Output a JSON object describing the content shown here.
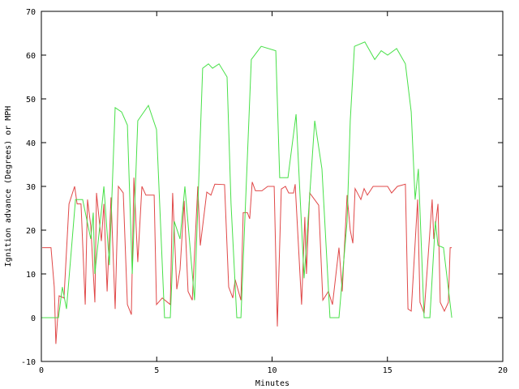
{
  "chart_data": {
    "type": "line",
    "title": "",
    "xlabel": "Minutes",
    "ylabel": "Ignition advance (Degrees) or MPH",
    "xlim": [
      0,
      20
    ],
    "ylim": [
      -10,
      70
    ],
    "xticks": [
      0,
      5,
      10,
      15,
      20
    ],
    "yticks": [
      -10,
      0,
      10,
      20,
      30,
      40,
      50,
      60,
      70
    ],
    "grid": false,
    "legend": "none",
    "series": [
      {
        "color": "#e04848",
        "points": [
          [
            0.04,
            16
          ],
          [
            0.42,
            16
          ],
          [
            0.56,
            7
          ],
          [
            0.63,
            -6
          ],
          [
            0.77,
            5
          ],
          [
            0.98,
            4.5
          ],
          [
            1.2,
            26
          ],
          [
            1.44,
            30
          ],
          [
            1.55,
            26
          ],
          [
            1.72,
            26
          ],
          [
            1.9,
            3
          ],
          [
            2.0,
            27
          ],
          [
            2.14,
            21
          ],
          [
            2.32,
            3.5
          ],
          [
            2.39,
            28.5
          ],
          [
            2.6,
            17.5
          ],
          [
            2.71,
            26
          ],
          [
            2.85,
            6
          ],
          [
            3.02,
            27.5
          ],
          [
            3.2,
            2
          ],
          [
            3.34,
            30
          ],
          [
            3.55,
            28.5
          ],
          [
            3.73,
            3
          ],
          [
            3.9,
            0.7
          ],
          [
            4.01,
            32
          ],
          [
            4.18,
            12.7
          ],
          [
            4.36,
            30
          ],
          [
            4.53,
            28
          ],
          [
            4.89,
            28
          ],
          [
            4.99,
            3
          ],
          [
            5.24,
            4.5
          ],
          [
            5.59,
            3
          ],
          [
            5.69,
            28.5
          ],
          [
            5.87,
            6.5
          ],
          [
            6.01,
            11
          ],
          [
            6.19,
            26.7
          ],
          [
            6.36,
            6
          ],
          [
            6.54,
            4
          ],
          [
            6.78,
            30
          ],
          [
            6.89,
            16.5
          ],
          [
            7.17,
            28.7
          ],
          [
            7.35,
            28
          ],
          [
            7.52,
            30.5
          ],
          [
            7.94,
            30.4
          ],
          [
            8.12,
            7
          ],
          [
            8.3,
            4.5
          ],
          [
            8.4,
            8.7
          ],
          [
            8.65,
            4
          ],
          [
            8.75,
            24
          ],
          [
            8.93,
            24
          ],
          [
            9.03,
            22.6
          ],
          [
            9.14,
            31
          ],
          [
            9.28,
            29
          ],
          [
            9.56,
            29
          ],
          [
            9.81,
            30
          ],
          [
            10.09,
            30
          ],
          [
            10.23,
            -2
          ],
          [
            10.4,
            29.4
          ],
          [
            10.58,
            30
          ],
          [
            10.72,
            28.5
          ],
          [
            10.93,
            28.5
          ],
          [
            11.0,
            30.5
          ],
          [
            11.28,
            3
          ],
          [
            11.42,
            23
          ],
          [
            11.49,
            10
          ],
          [
            11.63,
            28.5
          ],
          [
            12.02,
            25.7
          ],
          [
            12.2,
            4
          ],
          [
            12.44,
            6
          ],
          [
            12.62,
            3
          ],
          [
            12.9,
            16
          ],
          [
            13.04,
            6
          ],
          [
            13.25,
            28
          ],
          [
            13.39,
            20
          ],
          [
            13.5,
            17
          ],
          [
            13.6,
            29.5
          ],
          [
            13.85,
            27
          ],
          [
            13.99,
            29.5
          ],
          [
            14.13,
            28
          ],
          [
            14.38,
            30
          ],
          [
            15.01,
            30
          ],
          [
            15.18,
            28.5
          ],
          [
            15.43,
            30
          ],
          [
            15.78,
            30.5
          ],
          [
            15.89,
            2
          ],
          [
            16.03,
            1.5
          ],
          [
            16.31,
            27
          ],
          [
            16.41,
            3.5
          ],
          [
            16.59,
            1
          ],
          [
            16.94,
            27
          ],
          [
            17.01,
            18
          ],
          [
            17.19,
            26
          ],
          [
            17.29,
            3.5
          ],
          [
            17.47,
            1.5
          ],
          [
            17.64,
            3.5
          ],
          [
            17.72,
            16
          ],
          [
            17.79,
            16
          ]
        ]
      },
      {
        "color": "#48e048",
        "points": [
          [
            0,
            0
          ],
          [
            0.74,
            0
          ],
          [
            0.91,
            7
          ],
          [
            1.09,
            2
          ],
          [
            1.48,
            27
          ],
          [
            1.79,
            27
          ],
          [
            2.14,
            18
          ],
          [
            2.25,
            24
          ],
          [
            2.32,
            10
          ],
          [
            2.71,
            30
          ],
          [
            2.95,
            12
          ],
          [
            3.2,
            48
          ],
          [
            3.48,
            47
          ],
          [
            3.73,
            44
          ],
          [
            3.94,
            10
          ],
          [
            4.18,
            45
          ],
          [
            4.64,
            48.5
          ],
          [
            4.99,
            43
          ],
          [
            5.34,
            0
          ],
          [
            5.59,
            0
          ],
          [
            5.76,
            22
          ],
          [
            6.01,
            18
          ],
          [
            6.22,
            30
          ],
          [
            6.64,
            4
          ],
          [
            6.99,
            57
          ],
          [
            7.24,
            58
          ],
          [
            7.42,
            57
          ],
          [
            7.7,
            58
          ],
          [
            8.05,
            55
          ],
          [
            8.22,
            26
          ],
          [
            8.47,
            0
          ],
          [
            8.65,
            0
          ],
          [
            9.1,
            59
          ],
          [
            9.53,
            62
          ],
          [
            10.16,
            61
          ],
          [
            10.33,
            32
          ],
          [
            10.69,
            32
          ],
          [
            11.04,
            46.5
          ],
          [
            11.39,
            9
          ],
          [
            11.85,
            45
          ],
          [
            12.16,
            34
          ],
          [
            12.51,
            0
          ],
          [
            12.9,
            0
          ],
          [
            13.25,
            22
          ],
          [
            13.39,
            45
          ],
          [
            13.57,
            62
          ],
          [
            14.02,
            63
          ],
          [
            14.45,
            59
          ],
          [
            14.73,
            61
          ],
          [
            15.01,
            60
          ],
          [
            15.4,
            61.5
          ],
          [
            15.78,
            58
          ],
          [
            16.03,
            47
          ],
          [
            16.2,
            27
          ],
          [
            16.34,
            34
          ],
          [
            16.59,
            0
          ],
          [
            16.84,
            0
          ],
          [
            17.08,
            22
          ],
          [
            17.19,
            16.5
          ],
          [
            17.43,
            16
          ],
          [
            17.79,
            0
          ]
        ]
      }
    ]
  }
}
